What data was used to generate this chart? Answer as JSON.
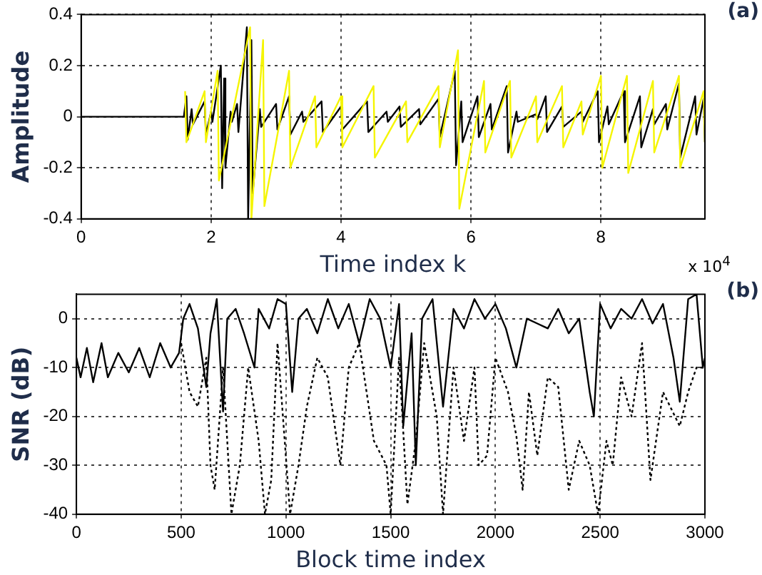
{
  "chart_data": [
    {
      "type": "line",
      "xlabel": "Time index k",
      "ylabel": "Amplitude",
      "annotations": [
        "(a)",
        "x 10$^{4}$"
      ],
      "xlim": [
        0,
        9.6
      ],
      "ylim": [
        -0.4,
        0.4
      ],
      "xticks": [
        0,
        2,
        4,
        6,
        8
      ],
      "yticks": [
        -0.4,
        -0.2,
        0,
        0.2,
        0.4
      ],
      "grid": true,
      "marker": "none",
      "series": [
        {
          "color": "#f5f500",
          "x": [
            1.6,
            1.62,
            1.9,
            1.92,
            2.1,
            2.12,
            2.6,
            2.62,
            2.8,
            2.82,
            3.2,
            3.22,
            3.6,
            3.62,
            4.0,
            4.02,
            4.5,
            4.52,
            5.0,
            5.02,
            5.5,
            5.52,
            5.8,
            5.82,
            6.2,
            6.22,
            6.6,
            6.62,
            7.0,
            7.02,
            7.4,
            7.42,
            7.7,
            7.72,
            8.0,
            8.02,
            8.4,
            8.42,
            8.8,
            8.82,
            9.2,
            9.22,
            9.58,
            9.6
          ],
          "values": [
            0.1,
            -0.1,
            0.1,
            -0.1,
            0.18,
            -0.25,
            0.35,
            -0.4,
            0.3,
            -0.35,
            0.18,
            -0.2,
            0.08,
            -0.12,
            0.08,
            -0.12,
            0.12,
            -0.16,
            0.06,
            -0.1,
            0.12,
            -0.12,
            0.26,
            -0.36,
            0.14,
            -0.14,
            0.14,
            -0.16,
            0.08,
            -0.1,
            0.12,
            -0.12,
            0.06,
            -0.07,
            0.16,
            -0.2,
            0.16,
            -0.22,
            0.14,
            -0.14,
            0.16,
            -0.2,
            0.1,
            -0.1
          ]
        },
        {
          "color": "#000000",
          "x": [
            0,
            1.58,
            1.62,
            1.64,
            1.7,
            1.72,
            1.9,
            1.92,
            2.0,
            2.02,
            2.15,
            2.17,
            2.2,
            2.22,
            2.3,
            2.32,
            2.4,
            2.42,
            2.55,
            2.57,
            2.62,
            2.64,
            2.75,
            2.77,
            3.0,
            3.02,
            3.2,
            3.22,
            3.4,
            3.42,
            3.7,
            3.72,
            4.0,
            4.02,
            4.4,
            4.42,
            4.7,
            4.72,
            4.9,
            4.92,
            5.2,
            5.22,
            5.5,
            5.52,
            5.75,
            5.77,
            5.85,
            5.87,
            6.1,
            6.12,
            6.3,
            6.32,
            6.55,
            6.57,
            6.7,
            6.72,
            7.0,
            7.02,
            7.15,
            7.17,
            7.4,
            7.42,
            7.7,
            7.72,
            7.95,
            7.97,
            8.1,
            8.12,
            8.35,
            8.37,
            8.6,
            8.62,
            8.8,
            8.82,
            9.0,
            9.02,
            9.2,
            9.22,
            9.45,
            9.47,
            9.58,
            9.6
          ],
          "values": [
            0,
            0,
            0.08,
            -0.09,
            0.03,
            -0.03,
            0.06,
            -0.07,
            0.02,
            -0.02,
            0.2,
            -0.28,
            0.15,
            -0.2,
            0.02,
            -0.02,
            0.05,
            -0.06,
            0.35,
            -0.4,
            0.3,
            -0.3,
            0.03,
            -0.04,
            0.05,
            -0.05,
            0.08,
            -0.07,
            0.02,
            -0.02,
            0.06,
            -0.06,
            0.04,
            -0.05,
            0.06,
            -0.06,
            0.02,
            -0.02,
            0.04,
            -0.04,
            0.03,
            -0.03,
            0.07,
            -0.08,
            0.18,
            -0.19,
            0.06,
            -0.1,
            0.08,
            -0.08,
            0.05,
            -0.05,
            0.12,
            -0.14,
            0.02,
            -0.02,
            0.01,
            -0.01,
            0.08,
            -0.06,
            0.04,
            -0.04,
            0.02,
            -0.02,
            0.1,
            -0.1,
            0.04,
            -0.03,
            0.1,
            -0.1,
            0.08,
            -0.12,
            0.03,
            -0.03,
            0.05,
            -0.05,
            0.13,
            -0.16,
            0.08,
            -0.07,
            0.07,
            -0.1
          ]
        }
      ]
    },
    {
      "type": "line",
      "xlabel": "Block time index",
      "ylabel": "SNR (dB)",
      "annotations": [
        "(b)"
      ],
      "xlim": [
        0,
        3000
      ],
      "ylim": [
        -40,
        5
      ],
      "xticks": [
        0,
        500,
        1000,
        1500,
        2000,
        2500,
        3000
      ],
      "yticks": [
        -40,
        -30,
        -20,
        -10,
        0
      ],
      "grid": true,
      "marker": "none",
      "series": [
        {
          "color": "#000000",
          "line_style": "dotted",
          "x": [
            500,
            540,
            580,
            620,
            640,
            660,
            700,
            740,
            780,
            820,
            870,
            900,
            930,
            960,
            1020,
            1060,
            1100,
            1150,
            1200,
            1260,
            1300,
            1350,
            1420,
            1480,
            1500,
            1540,
            1580,
            1620,
            1660,
            1720,
            1750,
            1800,
            1850,
            1900,
            1920,
            1960,
            2000,
            2060,
            2100,
            2130,
            2160,
            2200,
            2250,
            2300,
            2350,
            2400,
            2450,
            2490,
            2530,
            2560,
            2600,
            2650,
            2700,
            2740,
            2800,
            2880,
            2920,
            2960,
            3000
          ],
          "values": [
            -5,
            -15,
            -18,
            -8,
            -30,
            -35,
            -10,
            -40,
            -30,
            -10,
            -25,
            -40,
            -33,
            -5,
            -40,
            -30,
            -18,
            -8,
            -12,
            -30,
            -10,
            -5,
            -25,
            -30,
            -40,
            -8,
            -38,
            -25,
            -5,
            -20,
            -40,
            -10,
            -25,
            -10,
            -30,
            -28,
            -8,
            -15,
            -24,
            -35,
            -15,
            -28,
            -12,
            -14,
            -35,
            -25,
            -30,
            -40,
            -25,
            -30,
            -12,
            -20,
            -5,
            -33,
            -15,
            -22,
            -15,
            -10,
            -10
          ]
        },
        {
          "color": "#000000",
          "line_style": "solid",
          "x": [
            0,
            20,
            50,
            80,
            120,
            150,
            200,
            250,
            300,
            350,
            400,
            450,
            490,
            510,
            540,
            580,
            620,
            640,
            670,
            700,
            720,
            760,
            800,
            850,
            870,
            920,
            960,
            1000,
            1030,
            1060,
            1100,
            1150,
            1200,
            1250,
            1300,
            1350,
            1400,
            1450,
            1500,
            1540,
            1560,
            1600,
            1620,
            1650,
            1700,
            1750,
            1800,
            1850,
            1900,
            1950,
            2000,
            2050,
            2100,
            2150,
            2200,
            2250,
            2300,
            2350,
            2400,
            2450,
            2470,
            2500,
            2550,
            2600,
            2650,
            2700,
            2750,
            2800,
            2850,
            2880,
            2920,
            2960,
            2990,
            3000
          ],
          "values": [
            -8,
            -12,
            -6,
            -13,
            -5,
            -12,
            -7,
            -11,
            -6,
            -12,
            -5,
            -10,
            -7,
            0,
            3,
            -2,
            -14,
            -3,
            4,
            -19,
            0,
            2,
            -3,
            -10,
            2,
            -2,
            4,
            3,
            -15,
            0,
            2,
            -3,
            4,
            -2,
            3,
            -5,
            4,
            0,
            -10,
            3,
            -22,
            -3,
            -30,
            0,
            4,
            -18,
            2,
            -2,
            4,
            0,
            3,
            -2,
            -10,
            0,
            -1,
            -2,
            2,
            -3,
            0,
            -15,
            -20,
            3,
            -2,
            2,
            0,
            4,
            -1,
            3,
            -8,
            -17,
            4,
            5,
            -10,
            -8
          ]
        }
      ]
    }
  ]
}
